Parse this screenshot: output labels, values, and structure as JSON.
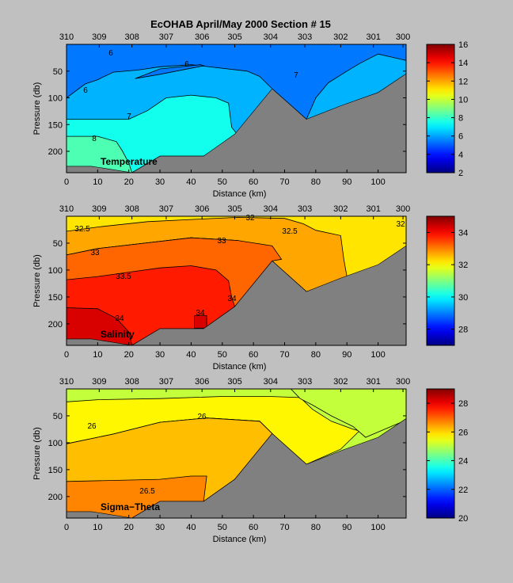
{
  "figure": {
    "title": "EcOHAB   April/May 2000   Section # 15"
  },
  "chart_data": [
    {
      "type": "heatmap",
      "panel_label": "Temperature",
      "xlabel": "Distance (km)",
      "ylabel": "Pressure (db)",
      "xlim": [
        0,
        109
      ],
      "ylim": [
        240,
        0
      ],
      "y_reversed": true,
      "xticks": [
        0,
        10,
        20,
        30,
        40,
        50,
        60,
        70,
        80,
        90,
        100
      ],
      "yticks": [
        50,
        100,
        150,
        200
      ],
      "station_labels": [
        "310",
        "309",
        "308",
        "307",
        "306",
        "305",
        "304",
        "303",
        "302",
        "301",
        "300"
      ],
      "station_distances": [
        0,
        10.5,
        21,
        32,
        43.5,
        54,
        65.5,
        76.5,
        88,
        98.5,
        108
      ],
      "contour_labels": [
        "6",
        "6",
        "6",
        "7",
        "7",
        "8"
      ],
      "bottom_profile": {
        "distance": [
          0,
          8,
          21,
          30,
          44,
          54,
          66,
          77,
          88,
          100,
          109
        ],
        "pressure": [
          228,
          228,
          240,
          209,
          209,
          168,
          83,
          140,
          115,
          90,
          55
        ]
      },
      "colorbar": {
        "min": 2,
        "max": 16,
        "ticks": [
          2,
          4,
          6,
          8,
          10,
          12,
          14,
          16
        ]
      },
      "regions": [
        {
          "value": 6.2,
          "label": "6-7"
        },
        {
          "value": 5.4,
          "label": "<6"
        },
        {
          "value": 7.5,
          "label": "7-8"
        },
        {
          "value": 8.3,
          "label": ">8"
        }
      ]
    },
    {
      "type": "heatmap",
      "panel_label": "Salinity",
      "xlabel": "Distance (km)",
      "ylabel": "Pressure (db)",
      "xlim": [
        0,
        109
      ],
      "ylim": [
        240,
        0
      ],
      "y_reversed": true,
      "xticks": [
        0,
        10,
        20,
        30,
        40,
        50,
        60,
        70,
        80,
        90,
        100
      ],
      "yticks": [
        50,
        100,
        150,
        200
      ],
      "station_labels": [
        "310",
        "309",
        "308",
        "307",
        "306",
        "305",
        "304",
        "303",
        "302",
        "301",
        "300"
      ],
      "station_distances": [
        0,
        10.5,
        21,
        32,
        43.5,
        54,
        65.5,
        76.5,
        88,
        98.5,
        108
      ],
      "contour_labels": [
        "32.5",
        "32",
        "32.5",
        "32",
        "33",
        "33",
        "33.5",
        "34",
        "34",
        "34"
      ],
      "bottom_profile": {
        "distance": [
          0,
          8,
          21,
          30,
          44,
          54,
          66,
          77,
          88,
          100,
          109
        ],
        "pressure": [
          228,
          228,
          240,
          209,
          209,
          168,
          83,
          140,
          115,
          90,
          55
        ]
      },
      "colorbar": {
        "min": 27,
        "max": 35,
        "ticks": [
          28,
          30,
          32,
          34
        ]
      },
      "regions": [
        {
          "value": 32.2,
          "label": "<32.5"
        },
        {
          "value": 32.7,
          "label": "32.5-33"
        },
        {
          "value": 33.2,
          "label": "33-33.5"
        },
        {
          "value": 33.8,
          "label": "33.5-34"
        },
        {
          "value": 34.3,
          "label": ">34"
        }
      ]
    },
    {
      "type": "heatmap",
      "panel_label": "Sigma−Theta",
      "xlabel": "Distance (km)",
      "ylabel": "Pressure (db)",
      "xlim": [
        0,
        109
      ],
      "ylim": [
        240,
        0
      ],
      "y_reversed": true,
      "xticks": [
        0,
        10,
        20,
        30,
        40,
        50,
        60,
        70,
        80,
        90,
        100
      ],
      "yticks": [
        50,
        100,
        150,
        200
      ],
      "station_labels": [
        "310",
        "309",
        "308",
        "307",
        "306",
        "305",
        "304",
        "303",
        "302",
        "301",
        "300"
      ],
      "station_distances": [
        0,
        10.5,
        21,
        32,
        43.5,
        54,
        65.5,
        76.5,
        88,
        98.5,
        108
      ],
      "contour_labels": [
        "26",
        "26",
        "26.5"
      ],
      "bottom_profile": {
        "distance": [
          0,
          8,
          21,
          30,
          44,
          54,
          66,
          77,
          88,
          100,
          109
        ],
        "pressure": [
          228,
          228,
          240,
          209,
          209,
          168,
          83,
          140,
          115,
          90,
          55
        ]
      },
      "colorbar": {
        "min": 20,
        "max": 29,
        "ticks": [
          20,
          22,
          24,
          26,
          28
        ]
      },
      "regions": [
        {
          "value": 25.1,
          "label": "<25.5"
        },
        {
          "value": 25.7,
          "label": "25.5-26"
        },
        {
          "value": 26.2,
          "label": "26-26.5"
        },
        {
          "value": 26.7,
          "label": ">26.5"
        }
      ]
    }
  ]
}
